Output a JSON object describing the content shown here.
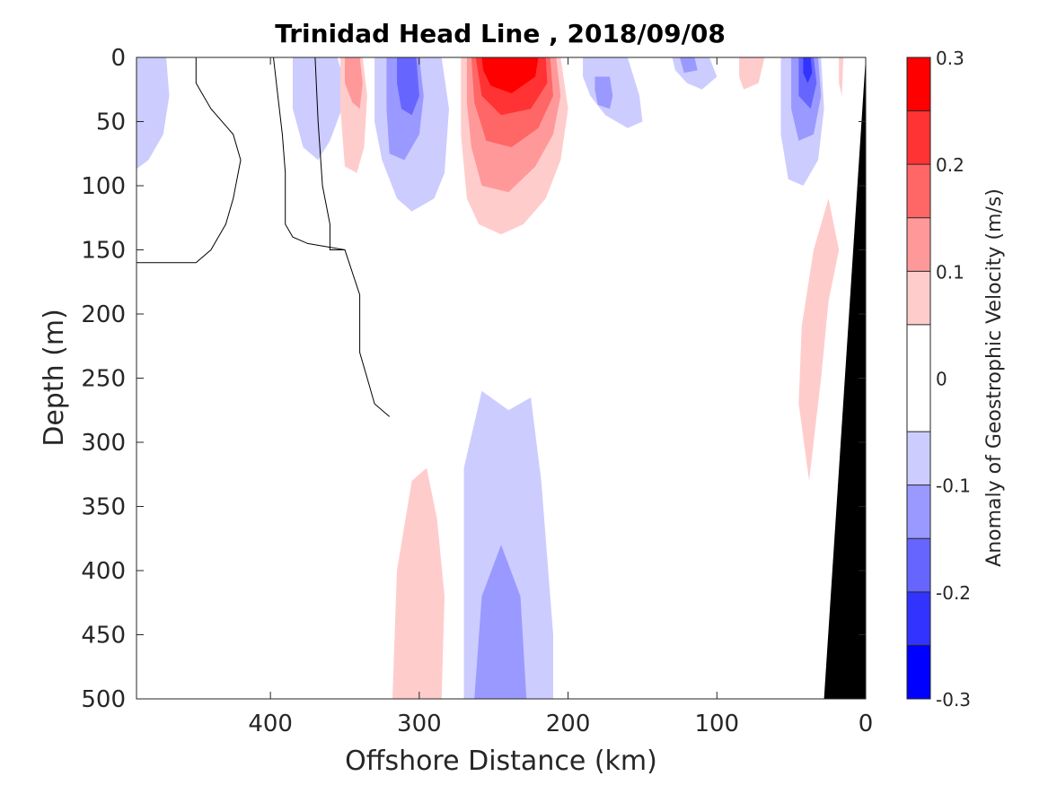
{
  "chart_data": {
    "type": "heatmap",
    "title": "Trinidad Head Line , 2018/09/08",
    "xlabel": "Offshore Distance (km)",
    "ylabel": "Depth (m)",
    "colorbar_label": "Anomaly of Geostrophic Velocity (m/s)",
    "xlim": [
      490,
      0
    ],
    "ylim": [
      0,
      500
    ],
    "x_reversed": true,
    "y_reversed": true,
    "x_ticks": [
      400,
      300,
      200,
      100,
      0
    ],
    "y_ticks": [
      0,
      50,
      100,
      150,
      200,
      250,
      300,
      350,
      400,
      450,
      500
    ],
    "colorbar_range": [
      -0.3,
      0.3
    ],
    "colorbar_ticks": [
      0.3,
      0.2,
      0.1,
      0,
      -0.1,
      -0.2,
      -0.3
    ],
    "colorbar_tick_labels": [
      "0.3",
      "0.2",
      "0.1",
      "0",
      "-0.1",
      "-0.2",
      "-0.3"
    ],
    "levels": [
      -0.3,
      -0.25,
      -0.2,
      -0.15,
      -0.1,
      -0.05,
      0.05,
      0.1,
      0.15,
      0.2,
      0.25,
      0.3
    ],
    "level_colors": [
      "#0000ff",
      "#3333ff",
      "#6666ff",
      "#9999ff",
      "#ccccff",
      "#ffffff",
      "#ffcccc",
      "#ff9999",
      "#ff6666",
      "#ff3333",
      "#ff0000"
    ],
    "bathymetry_color": "#000000",
    "grid": false,
    "regions": [
      {
        "level": -0.075,
        "points": [
          [
            490,
            0
          ],
          [
            470,
            0
          ],
          [
            468,
            30
          ],
          [
            472,
            60
          ],
          [
            482,
            80
          ],
          [
            490,
            87
          ]
        ]
      },
      {
        "level": -0.075,
        "points": [
          [
            385,
            0
          ],
          [
            355,
            0
          ],
          [
            350,
            20
          ],
          [
            352,
            40
          ],
          [
            360,
            65
          ],
          [
            368,
            80
          ],
          [
            378,
            70
          ],
          [
            385,
            40
          ]
        ]
      },
      {
        "level": -0.075,
        "points": [
          [
            330,
            0
          ],
          [
            285,
            0
          ],
          [
            280,
            40
          ],
          [
            283,
            90
          ],
          [
            290,
            110
          ],
          [
            305,
            120
          ],
          [
            315,
            110
          ],
          [
            325,
            80
          ],
          [
            330,
            50
          ]
        ]
      },
      {
        "level": -0.075,
        "points": [
          [
            190,
            0
          ],
          [
            160,
            0
          ],
          [
            152,
            30
          ],
          [
            150,
            50
          ],
          [
            160,
            55
          ],
          [
            175,
            45
          ],
          [
            185,
            30
          ],
          [
            190,
            15
          ]
        ]
      },
      {
        "level": -0.075,
        "points": [
          [
            130,
            0
          ],
          [
            105,
            0
          ],
          [
            100,
            15
          ],
          [
            110,
            25
          ],
          [
            120,
            20
          ],
          [
            128,
            10
          ]
        ]
      },
      {
        "level": -0.075,
        "points": [
          [
            57,
            0
          ],
          [
            30,
            0
          ],
          [
            28,
            40
          ],
          [
            32,
            80
          ],
          [
            42,
            100
          ],
          [
            52,
            95
          ],
          [
            57,
            60
          ]
        ]
      },
      {
        "level": -0.075,
        "points": [
          [
            270,
            500
          ],
          [
            270,
            320
          ],
          [
            258,
            260
          ],
          [
            240,
            275
          ],
          [
            225,
            265
          ],
          [
            218,
            330
          ],
          [
            210,
            450
          ],
          [
            210,
            500
          ]
        ]
      },
      {
        "level": -0.125,
        "points": [
          [
            322,
            0
          ],
          [
            300,
            0
          ],
          [
            297,
            30
          ],
          [
            300,
            60
          ],
          [
            310,
            80
          ],
          [
            320,
            75
          ],
          [
            322,
            40
          ]
        ]
      },
      {
        "level": -0.125,
        "points": [
          [
            182,
            15
          ],
          [
            172,
            15
          ],
          [
            170,
            30
          ],
          [
            172,
            40
          ],
          [
            180,
            37
          ],
          [
            182,
            25
          ]
        ]
      },
      {
        "level": -0.125,
        "points": [
          [
            125,
            0
          ],
          [
            115,
            0
          ],
          [
            113,
            10
          ],
          [
            122,
            12
          ]
        ]
      },
      {
        "level": -0.125,
        "points": [
          [
            50,
            0
          ],
          [
            32,
            0
          ],
          [
            30,
            30
          ],
          [
            35,
            60
          ],
          [
            45,
            65
          ],
          [
            50,
            40
          ]
        ]
      },
      {
        "level": -0.125,
        "points": [
          [
            263,
            500
          ],
          [
            258,
            420
          ],
          [
            245,
            380
          ],
          [
            232,
            420
          ],
          [
            228,
            500
          ]
        ]
      },
      {
        "level": -0.175,
        "points": [
          [
            315,
            0
          ],
          [
            302,
            0
          ],
          [
            300,
            30
          ],
          [
            305,
            45
          ],
          [
            312,
            40
          ],
          [
            315,
            20
          ]
        ]
      },
      {
        "level": -0.175,
        "points": [
          [
            45,
            0
          ],
          [
            35,
            0
          ],
          [
            33,
            20
          ],
          [
            37,
            40
          ],
          [
            45,
            30
          ]
        ]
      },
      {
        "level": -0.225,
        "points": [
          [
            42,
            0
          ],
          [
            37,
            0
          ],
          [
            36,
            12
          ],
          [
            39,
            20
          ],
          [
            42,
            12
          ]
        ]
      },
      {
        "level": 0.075,
        "points": [
          [
            353,
            0
          ],
          [
            338,
            0
          ],
          [
            335,
            30
          ],
          [
            337,
            70
          ],
          [
            342,
            90
          ],
          [
            350,
            85
          ],
          [
            353,
            40
          ]
        ]
      },
      {
        "level": 0.075,
        "points": [
          [
            272,
            0
          ],
          [
            205,
            0
          ],
          [
            200,
            40
          ],
          [
            205,
            80
          ],
          [
            215,
            110
          ],
          [
            230,
            130
          ],
          [
            245,
            138
          ],
          [
            260,
            130
          ],
          [
            268,
            110
          ],
          [
            272,
            60
          ]
        ]
      },
      {
        "level": 0.075,
        "points": [
          [
            85,
            0
          ],
          [
            68,
            0
          ],
          [
            72,
            20
          ],
          [
            82,
            25
          ],
          [
            85,
            15
          ]
        ]
      },
      {
        "level": 0.075,
        "points": [
          [
            18,
            0
          ],
          [
            15,
            0
          ],
          [
            16,
            30
          ],
          [
            18,
            20
          ]
        ]
      },
      {
        "level": 0.075,
        "points": [
          [
            25,
            110
          ],
          [
            18,
            150
          ],
          [
            25,
            190
          ],
          [
            30,
            250
          ],
          [
            35,
            300
          ],
          [
            38,
            330
          ],
          [
            45,
            270
          ],
          [
            43,
            210
          ],
          [
            35,
            150
          ]
        ]
      },
      {
        "level": 0.075,
        "points": [
          [
            318,
            500
          ],
          [
            315,
            400
          ],
          [
            305,
            330
          ],
          [
            295,
            320
          ],
          [
            288,
            360
          ],
          [
            283,
            420
          ],
          [
            285,
            500
          ]
        ]
      },
      {
        "level": 0.125,
        "points": [
          [
            350,
            0
          ],
          [
            340,
            0
          ],
          [
            338,
            20
          ],
          [
            340,
            40
          ],
          [
            345,
            35
          ],
          [
            350,
            20
          ]
        ]
      },
      {
        "level": 0.125,
        "points": [
          [
            268,
            0
          ],
          [
            208,
            0
          ],
          [
            205,
            30
          ],
          [
            210,
            60
          ],
          [
            222,
            85
          ],
          [
            240,
            105
          ],
          [
            258,
            100
          ],
          [
            265,
            70
          ],
          [
            268,
            35
          ]
        ]
      },
      {
        "level": 0.175,
        "points": [
          [
            265,
            0
          ],
          [
            212,
            0
          ],
          [
            210,
            30
          ],
          [
            220,
            55
          ],
          [
            238,
            70
          ],
          [
            255,
            65
          ],
          [
            263,
            35
          ]
        ]
      },
      {
        "level": 0.225,
        "points": [
          [
            262,
            0
          ],
          [
            215,
            0
          ],
          [
            214,
            20
          ],
          [
            225,
            40
          ],
          [
            245,
            45
          ],
          [
            258,
            30
          ]
        ]
      },
      {
        "level": 0.275,
        "points": [
          [
            258,
            0
          ],
          [
            220,
            0
          ],
          [
            222,
            15
          ],
          [
            238,
            28
          ],
          [
            252,
            22
          ],
          [
            257,
            10
          ]
        ]
      }
    ],
    "zero_contours": [
      {
        "points": [
          [
            450,
            0
          ],
          [
            450,
            20
          ],
          [
            440,
            40
          ],
          [
            425,
            60
          ],
          [
            420,
            80
          ],
          [
            425,
            110
          ],
          [
            430,
            130
          ],
          [
            440,
            150
          ],
          [
            450,
            160
          ],
          [
            490,
            160
          ]
        ]
      },
      {
        "points": [
          [
            398,
            0
          ],
          [
            395,
            30
          ],
          [
            392,
            60
          ],
          [
            390,
            90
          ],
          [
            390,
            130
          ],
          [
            385,
            140
          ],
          [
            375,
            145
          ],
          [
            350,
            150
          ],
          [
            340,
            185
          ],
          [
            340,
            230
          ],
          [
            335,
            250
          ],
          [
            330,
            270
          ],
          [
            320,
            280
          ]
        ]
      },
      {
        "points": [
          [
            370,
            0
          ],
          [
            368,
            50
          ],
          [
            365,
            100
          ],
          [
            360,
            130
          ],
          [
            360,
            150
          ],
          [
            350,
            150
          ]
        ]
      }
    ],
    "bathymetry": {
      "points": [
        [
          0,
          0
        ],
        [
          28,
          500
        ],
        [
          0,
          500
        ]
      ]
    }
  }
}
